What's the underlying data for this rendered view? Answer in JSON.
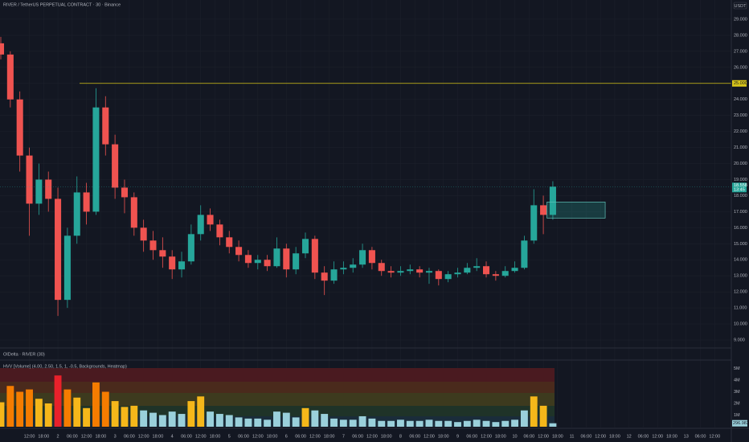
{
  "header": {
    "title": "RIVER / TetherUS PERPETUAL CONTRACT · 30 · Binance",
    "currency": "USDT",
    "pane_label": "OIDelta · RIVER (30)"
  },
  "chart_data": [
    {
      "type": "candlestick",
      "x": [
        0,
        4,
        8,
        12,
        16,
        20,
        24,
        28,
        32,
        36,
        40,
        44,
        48,
        52,
        56,
        60,
        64,
        68,
        72,
        76,
        80,
        84,
        88,
        92,
        96,
        100,
        104,
        108,
        112,
        116,
        120,
        124,
        128,
        132,
        136,
        140,
        144,
        148,
        152,
        156,
        160,
        164,
        168,
        172,
        176,
        180,
        184,
        188,
        192,
        196,
        200,
        204,
        208,
        212,
        216,
        220,
        224,
        228,
        232
      ],
      "open": [
        27.5,
        26.8,
        24.0,
        20.5,
        17.5,
        19.0,
        17.8,
        11.5,
        15.5,
        18.2,
        17.0,
        23.5,
        21.2,
        18.5,
        17.9,
        16.0,
        15.2,
        14.6,
        14.2,
        13.4,
        13.9,
        15.6,
        16.8,
        16.2,
        15.4,
        14.8,
        14.3,
        13.8,
        14.0,
        13.6,
        14.7,
        13.4,
        14.4,
        15.3,
        13.2,
        12.7,
        13.4,
        13.5,
        13.7,
        14.6,
        13.8,
        13.3,
        13.2,
        13.3,
        13.4,
        13.2,
        13.3,
        12.8,
        13.1,
        13.2,
        13.5,
        13.6,
        13.1,
        13.0,
        13.3,
        13.5,
        15.2,
        17.4,
        16.8
      ],
      "high": [
        27.9,
        27.0,
        24.5,
        21.0,
        20.0,
        19.5,
        18.5,
        16.0,
        19.2,
        18.8,
        24.7,
        24.2,
        21.8,
        19.0,
        18.2,
        16.5,
        15.8,
        15.4,
        14.6,
        14.5,
        16.2,
        17.4,
        17.2,
        16.5,
        15.8,
        15.2,
        14.6,
        14.3,
        14.3,
        15.4,
        15.0,
        14.8,
        15.7,
        15.5,
        13.6,
        13.9,
        13.9,
        14.1,
        15.0,
        14.8,
        14.0,
        13.6,
        13.6,
        13.7,
        13.6,
        13.5,
        13.4,
        13.3,
        13.5,
        13.8,
        14.1,
        13.9,
        13.3,
        13.6,
        13.9,
        15.5,
        18.4,
        18.0,
        18.9
      ],
      "low": [
        26.5,
        23.5,
        19.5,
        15.5,
        16.8,
        17.0,
        10.5,
        11.0,
        15.0,
        16.2,
        16.8,
        20.5,
        17.8,
        16.9,
        15.5,
        14.5,
        14.0,
        13.5,
        12.8,
        12.9,
        13.7,
        15.2,
        15.8,
        14.9,
        14.4,
        13.9,
        13.5,
        13.4,
        13.3,
        13.5,
        12.9,
        13.1,
        14.1,
        12.8,
        11.8,
        12.5,
        13.1,
        13.2,
        13.5,
        13.4,
        13.0,
        12.9,
        13.0,
        13.1,
        12.9,
        12.5,
        12.4,
        12.6,
        12.9,
        13.1,
        13.3,
        12.9,
        12.7,
        12.9,
        13.2,
        13.4,
        15.0,
        15.6,
        16.5
      ],
      "close": [
        26.8,
        24.0,
        20.5,
        17.5,
        19.0,
        17.8,
        11.5,
        15.5,
        18.2,
        17.0,
        23.5,
        21.2,
        18.5,
        17.9,
        16.0,
        15.2,
        14.6,
        14.2,
        13.4,
        13.9,
        15.6,
        16.8,
        16.2,
        15.4,
        14.8,
        14.3,
        13.8,
        14.0,
        13.6,
        14.7,
        13.4,
        14.4,
        15.3,
        13.2,
        12.7,
        13.4,
        13.5,
        13.7,
        14.6,
        13.8,
        13.3,
        13.2,
        13.3,
        13.4,
        13.2,
        13.3,
        12.8,
        13.1,
        13.2,
        13.5,
        13.6,
        13.1,
        13.0,
        13.3,
        13.5,
        15.2,
        17.4,
        16.8,
        18.558
      ],
      "up_color": "#26a69a",
      "down_color": "#ef5350",
      "current_price_label": "18.558",
      "countdown": "13:45",
      "horizontal_line": {
        "value": 25.0,
        "label": "25.000",
        "color": "#d8c61a"
      },
      "zone_x": [
        229.5,
        254
      ],
      "zone_y": [
        16.6,
        17.6
      ],
      "xlim": [
        0,
        307
      ],
      "ylim": [
        8.55,
        30.2
      ],
      "yticks": [
        {
          "value": 9,
          "label": "9.000"
        },
        {
          "value": 10,
          "label": "10.000"
        },
        {
          "value": 11,
          "label": "11.000"
        },
        {
          "value": 12,
          "label": "12.000"
        },
        {
          "value": 13,
          "label": "13.000"
        },
        {
          "value": 14,
          "label": "14.000"
        },
        {
          "value": 15,
          "label": "15.000"
        },
        {
          "value": 16,
          "label": "16.000"
        },
        {
          "value": 17,
          "label": "17.000"
        },
        {
          "value": 18,
          "label": "18.000"
        },
        {
          "value": 19,
          "label": "19.000"
        },
        {
          "value": 20,
          "label": "20.000"
        },
        {
          "value": 21,
          "label": "21.000"
        },
        {
          "value": 22,
          "label": "22.000"
        },
        {
          "value": 23,
          "label": "23.000"
        },
        {
          "value": 24,
          "label": "24.000"
        },
        {
          "value": 25,
          "label": "25.000"
        },
        {
          "value": 26,
          "label": "26.000"
        },
        {
          "value": 27,
          "label": "27.000"
        },
        {
          "value": 28,
          "label": "28.000"
        },
        {
          "value": 29,
          "label": "29.000"
        }
      ],
      "xticks": [
        {
          "value": 12,
          "label": "12:00"
        },
        {
          "value": 18,
          "label": "18:00"
        },
        {
          "value": 24,
          "label": "2"
        },
        {
          "value": 30,
          "label": "06:00"
        },
        {
          "value": 36,
          "label": "12:00"
        },
        {
          "value": 42,
          "label": "18:00"
        },
        {
          "value": 48,
          "label": "3"
        },
        {
          "value": 54,
          "label": "06:00"
        },
        {
          "value": 60,
          "label": "12:00"
        },
        {
          "value": 66,
          "label": "18:00"
        },
        {
          "value": 72,
          "label": "4"
        },
        {
          "value": 78,
          "label": "06:00"
        },
        {
          "value": 84,
          "label": "12:00"
        },
        {
          "value": 90,
          "label": "18:00"
        },
        {
          "value": 96,
          "label": "5"
        },
        {
          "value": 102,
          "label": "06:00"
        },
        {
          "value": 108,
          "label": "12:00"
        },
        {
          "value": 114,
          "label": "18:00"
        },
        {
          "value": 120,
          "label": "6"
        },
        {
          "value": 126,
          "label": "06:00"
        },
        {
          "value": 132,
          "label": "12:00"
        },
        {
          "value": 138,
          "label": "18:00"
        },
        {
          "value": 144,
          "label": "7"
        },
        {
          "value": 150,
          "label": "06:00"
        },
        {
          "value": 156,
          "label": "12:00"
        },
        {
          "value": 162,
          "label": "18:00"
        },
        {
          "value": 168,
          "label": "8"
        },
        {
          "value": 174,
          "label": "06:00"
        },
        {
          "value": 180,
          "label": "12:00"
        },
        {
          "value": 186,
          "label": "18:00"
        },
        {
          "value": 192,
          "label": "9"
        },
        {
          "value": 198,
          "label": "06:00"
        },
        {
          "value": 204,
          "label": "12:00"
        },
        {
          "value": 210,
          "label": "18:00"
        },
        {
          "value": 216,
          "label": "10"
        },
        {
          "value": 222,
          "label": "06:00"
        },
        {
          "value": 228,
          "label": "12:00"
        },
        {
          "value": 234,
          "label": "18:00"
        },
        {
          "value": 240,
          "label": "11"
        },
        {
          "value": 246,
          "label": "06:00"
        },
        {
          "value": 252,
          "label": "12:00"
        },
        {
          "value": 258,
          "label": "18:00"
        },
        {
          "value": 264,
          "label": "12"
        },
        {
          "value": 270,
          "label": "06:00"
        },
        {
          "value": 276,
          "label": "12:00"
        },
        {
          "value": 282,
          "label": "18:00"
        },
        {
          "value": 288,
          "label": "13"
        },
        {
          "value": 294,
          "label": "06:00"
        },
        {
          "value": 300,
          "label": "12:00"
        }
      ],
      "grid": true
    },
    {
      "type": "bar",
      "title": "HVV [Volume] (4.00, 2.50, 1.5, 1, -0.5, Backgrounds, Heatmap)",
      "x": [
        0,
        4,
        8,
        12,
        16,
        20,
        24,
        28,
        32,
        36,
        40,
        44,
        48,
        52,
        56,
        60,
        64,
        68,
        72,
        76,
        80,
        84,
        88,
        92,
        96,
        100,
        104,
        108,
        112,
        116,
        120,
        124,
        128,
        132,
        136,
        140,
        144,
        148,
        152,
        156,
        160,
        164,
        168,
        172,
        176,
        180,
        184,
        188,
        192,
        196,
        200,
        204,
        208,
        212,
        216,
        220,
        224,
        228,
        232
      ],
      "values": [
        2.1,
        3.5,
        3.0,
        3.2,
        2.4,
        2.0,
        4.4,
        3.2,
        2.5,
        1.6,
        3.8,
        3.0,
        2.2,
        1.7,
        1.8,
        1.4,
        1.2,
        1.0,
        1.3,
        1.1,
        2.2,
        2.6,
        1.3,
        1.1,
        1.0,
        0.8,
        0.7,
        0.7,
        0.6,
        1.3,
        1.2,
        0.8,
        1.6,
        1.4,
        1.1,
        0.7,
        0.6,
        0.6,
        0.9,
        0.7,
        0.5,
        0.5,
        0.6,
        0.5,
        0.5,
        0.6,
        0.5,
        0.5,
        0.4,
        0.5,
        0.6,
        0.5,
        0.4,
        0.5,
        0.6,
        1.4,
        2.6,
        1.8,
        0.296983
      ],
      "colors": [
        "#f5b71a",
        "#f57c00",
        "#f57c00",
        "#f57c00",
        "#f5b71a",
        "#f5b71a",
        "#e8212b",
        "#f57c00",
        "#f5b71a",
        "#f5b71a",
        "#f57c00",
        "#f57c00",
        "#f5b71a",
        "#f5b71a",
        "#f5b71a",
        "#9ad0db",
        "#9ad0db",
        "#9ad0db",
        "#9ad0db",
        "#9ad0db",
        "#f5b71a",
        "#f5b71a",
        "#9ad0db",
        "#9ad0db",
        "#9ad0db",
        "#9ad0db",
        "#9ad0db",
        "#9ad0db",
        "#9ad0db",
        "#9ad0db",
        "#9ad0db",
        "#9ad0db",
        "#f5b71a",
        "#9ad0db",
        "#9ad0db",
        "#9ad0db",
        "#9ad0db",
        "#9ad0db",
        "#9ad0db",
        "#9ad0db",
        "#9ad0db",
        "#9ad0db",
        "#9ad0db",
        "#9ad0db",
        "#9ad0db",
        "#9ad0db",
        "#9ad0db",
        "#9ad0db",
        "#9ad0db",
        "#9ad0db",
        "#9ad0db",
        "#9ad0db",
        "#9ad0db",
        "#9ad0db",
        "#9ad0db",
        "#9ad0db",
        "#f5b71a",
        "#f5b71a",
        "#9ad0db"
      ],
      "last_value_label": "296.983K",
      "ylim": [
        0,
        5.2
      ],
      "yticks": [
        {
          "value": 1,
          "label": "1M"
        },
        {
          "value": 2,
          "label": "2M"
        },
        {
          "value": 3,
          "label": "3M"
        },
        {
          "value": 4,
          "label": "4M"
        },
        {
          "value": 5,
          "label": "5M"
        }
      ]
    }
  ]
}
